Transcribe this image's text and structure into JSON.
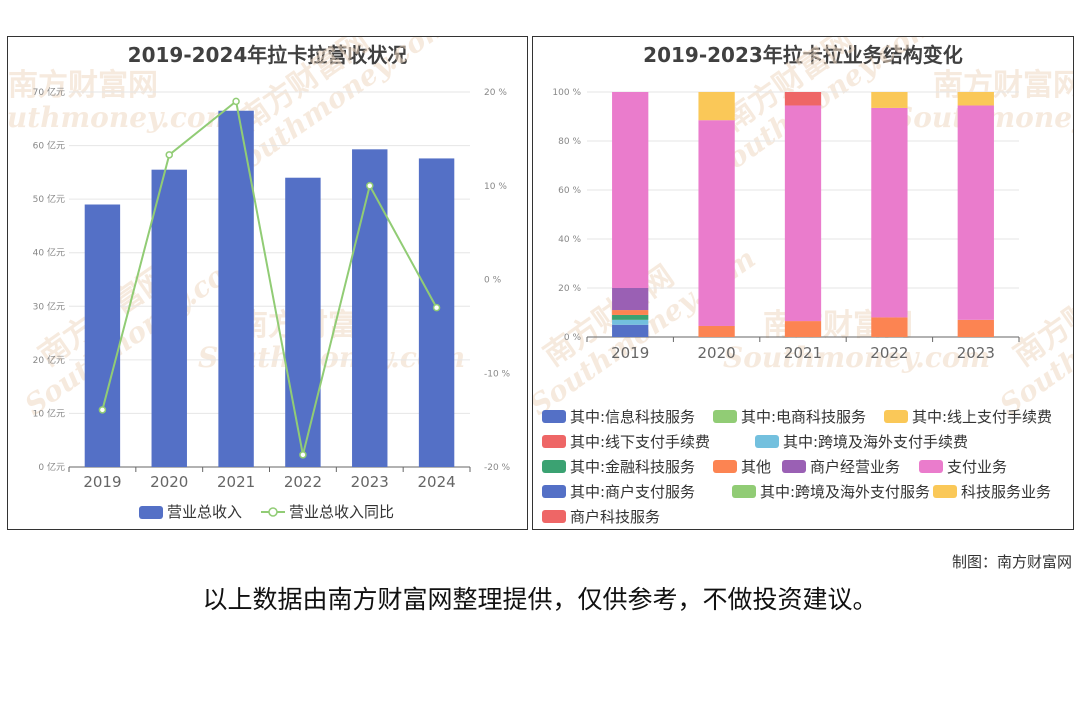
{
  "watermark": {
    "cn": "南方财富网",
    "en": "Southmoney.com"
  },
  "credit": "制图：南方财富网",
  "disclaimer": "以上数据由南方财富网整理提供，仅供参考，不做投资建议。",
  "chart_data": [
    {
      "type": "bar+line",
      "title": "2019-2024年拉卡拉营收状况",
      "categories": [
        "2019",
        "2020",
        "2021",
        "2022",
        "2023",
        "2024"
      ],
      "series": [
        {
          "name": "营业总收入",
          "type": "bar",
          "axis": "left",
          "color": "#5470c6",
          "values": [
            49.0,
            55.5,
            66.5,
            54.0,
            59.3,
            57.6
          ]
        },
        {
          "name": "营业总收入同比",
          "type": "line",
          "axis": "right",
          "color": "#91cc75",
          "values": [
            -13.9,
            13.3,
            19.0,
            -18.7,
            10.0,
            -3.0
          ]
        }
      ],
      "y_left": {
        "min": 0,
        "max": 70,
        "step": 10,
        "tick_labels": [
          "0 亿元",
          "10 亿元",
          "20 亿元",
          "30 亿元",
          "40 亿元",
          "50 亿元",
          "60 亿元",
          "70 亿元"
        ]
      },
      "y_right": {
        "min": -20,
        "max": 20,
        "step": 10,
        "tick_labels": [
          "-20 %",
          "-10 %",
          "0 %",
          "10 %",
          "20 %"
        ]
      },
      "legend": "bottom",
      "grid": true
    },
    {
      "type": "stacked-bar",
      "title": "2019-2023年拉卡拉业务结构变化",
      "categories": [
        "2019",
        "2020",
        "2021",
        "2022",
        "2023"
      ],
      "y": {
        "min": 0,
        "max": 100,
        "step": 20,
        "tick_labels": [
          "0 %",
          "20 %",
          "40 %",
          "60 %",
          "80 %",
          "100 %"
        ]
      },
      "legend_entries": [
        {
          "name": "其中:信息科技服务",
          "color": "#5470c6"
        },
        {
          "name": "其中:电商科技服务",
          "color": "#91cc75"
        },
        {
          "name": "其中:线上支付手续费",
          "color": "#fac858"
        },
        {
          "name": "其中:线下支付手续费",
          "color": "#ee6666"
        },
        {
          "name": "其中:跨境及海外支付手续费",
          "color": "#73c0de"
        },
        {
          "name": "其中:金融科技服务",
          "color": "#3ba272"
        },
        {
          "name": "其他",
          "color": "#fc8452"
        },
        {
          "name": "商户经营业务",
          "color": "#9a60b4"
        },
        {
          "name": "支付业务",
          "color": "#ea7ccc"
        },
        {
          "name": "其中:商户支付服务",
          "color": "#5470c6"
        },
        {
          "name": "其中:跨境及海外支付服务",
          "color": "#91cc75"
        },
        {
          "name": "科技服务业务",
          "color": "#fac858"
        },
        {
          "name": "商户科技服务",
          "color": "#ee6666"
        }
      ],
      "stacks": [
        {
          "category": "2019",
          "segments": [
            {
              "series": "其中:信息科技服务",
              "value": 5.0
            },
            {
              "series": "其中:跨境及海外支付手续费",
              "value": 2.0
            },
            {
              "series": "其中:金融科技服务",
              "value": 2.0
            },
            {
              "series": "其他",
              "value": 2.0
            },
            {
              "series": "商户经营业务",
              "value": 9.0
            },
            {
              "series": "支付业务",
              "value": 80.0
            }
          ]
        },
        {
          "category": "2020",
          "segments": [
            {
              "series": "其他",
              "value": 4.5
            },
            {
              "series": "支付业务",
              "value": 84.0
            },
            {
              "series": "科技服务业务",
              "value": 11.5
            }
          ]
        },
        {
          "category": "2021",
          "segments": [
            {
              "series": "其他",
              "value": 6.5
            },
            {
              "series": "支付业务",
              "value": 88.0
            },
            {
              "series": "商户科技服务",
              "value": 5.5
            }
          ]
        },
        {
          "category": "2022",
          "segments": [
            {
              "series": "其他",
              "value": 8.0
            },
            {
              "series": "支付业务",
              "value": 85.5
            },
            {
              "series": "科技服务业务",
              "value": 6.5
            }
          ]
        },
        {
          "category": "2023",
          "segments": [
            {
              "series": "其他",
              "value": 7.0
            },
            {
              "series": "支付业务",
              "value": 87.5
            },
            {
              "series": "科技服务业务",
              "value": 5.5
            }
          ]
        }
      ],
      "legend": "bottom",
      "grid": true
    }
  ]
}
